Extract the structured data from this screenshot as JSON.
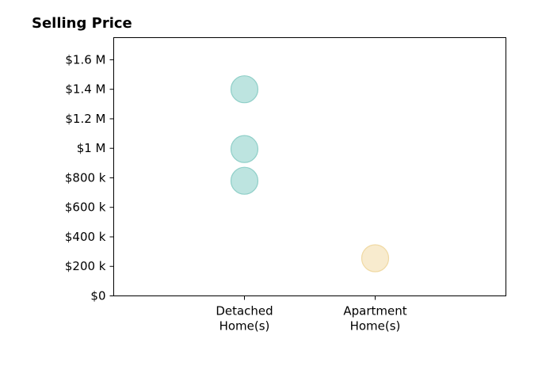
{
  "chart_data": {
    "type": "scatter",
    "title": "Selling Price",
    "xlabel": "",
    "ylabel": "",
    "categories": [
      {
        "lines": [
          "Detached",
          "Home(s)"
        ]
      },
      {
        "lines": [
          "Apartment",
          "Home(s)"
        ]
      }
    ],
    "ylim": [
      0,
      1750000
    ],
    "yticks": [
      {
        "value": 0,
        "label": "$0"
      },
      {
        "value": 200000,
        "label": "$200 k"
      },
      {
        "value": 400000,
        "label": "$400 k"
      },
      {
        "value": 600000,
        "label": "$600 k"
      },
      {
        "value": 800000,
        "label": "$800 k"
      },
      {
        "value": 1000000,
        "label": "$1 M"
      },
      {
        "value": 1200000,
        "label": "$1.2 M"
      },
      {
        "value": 1400000,
        "label": "$1.4 M"
      },
      {
        "value": 1600000,
        "label": "$1.6 M"
      }
    ],
    "points": [
      {
        "category": 0,
        "value": 1400000
      },
      {
        "category": 0,
        "value": 995000
      },
      {
        "category": 0,
        "value": 780000
      },
      {
        "category": 1,
        "value": 255000
      }
    ],
    "colors": [
      "#b2dfdb",
      "#f7e7c6"
    ],
    "edge_colors": [
      "#8fcfc8",
      "#f0d9a3"
    ],
    "grid": false,
    "legend": "none"
  }
}
